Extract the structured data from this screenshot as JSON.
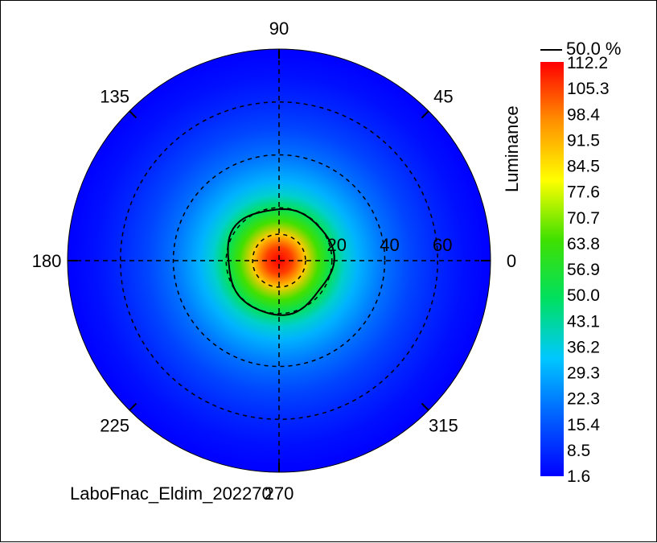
{
  "chart_data": {
    "type": "heatmap",
    "subtype": "polar-contour",
    "title": "",
    "footer_label": "LaboFnac_Eldim_202270",
    "colorbar": {
      "label": "Luminance",
      "min": 1.6,
      "max": 112.2,
      "ticks": [
        "112.2",
        "105.3",
        "98.4",
        "91.5",
        "84.5",
        "77.6",
        "70.7",
        "63.8",
        "56.9",
        "50.0",
        "43.1",
        "36.2",
        "29.3",
        "22.3",
        "15.4",
        "8.5",
        "1.6"
      ],
      "colors": [
        "#0000ff",
        "#0060ff",
        "#00c8ff",
        "#00e060",
        "#40e000",
        "#ffff00",
        "#ff9000",
        "#ff0000"
      ]
    },
    "legend": {
      "label": "50.0 %",
      "placement": "top-right"
    },
    "angular_ticks": [
      "0",
      "45",
      "90",
      "135",
      "180",
      "225",
      "270",
      "315"
    ],
    "radial_ticks": [
      "20",
      "40",
      "60"
    ],
    "radial_max": 80,
    "grid": true,
    "peak_luminance": 112.2,
    "luminance_profile": [
      {
        "r": 0,
        "value": 112.2
      },
      {
        "r": 5,
        "value": 105.0
      },
      {
        "r": 10,
        "value": 88.0
      },
      {
        "r": 15,
        "value": 65.0
      },
      {
        "r": 20,
        "value": 50.0
      },
      {
        "r": 25,
        "value": 38.0
      },
      {
        "r": 30,
        "value": 30.0
      },
      {
        "r": 40,
        "value": 20.0
      },
      {
        "r": 50,
        "value": 13.0
      },
      {
        "r": 60,
        "value": 8.0
      },
      {
        "r": 70,
        "value": 4.0
      },
      {
        "r": 80,
        "value": 1.6
      }
    ],
    "half_max_contour_radius": 20
  }
}
